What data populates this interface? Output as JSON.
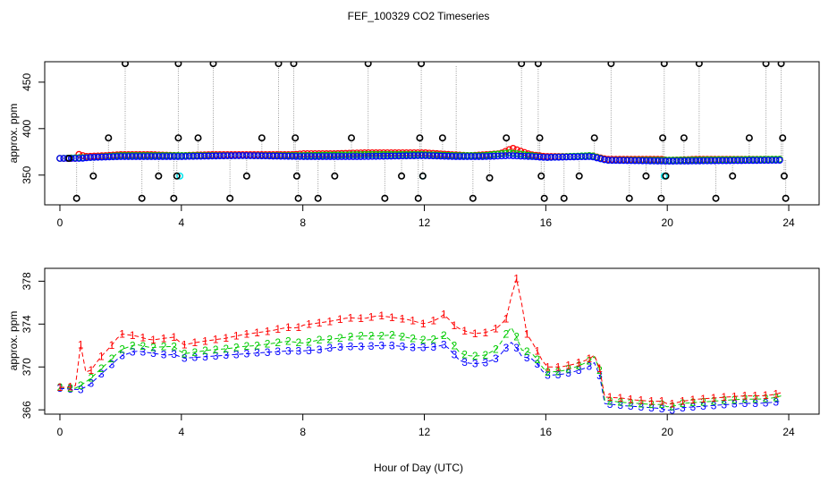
{
  "chart_data": {
    "type": "line",
    "title": "FEF_100329  CO2 Timeseries",
    "xlabel": "Hour of Day (UTC)",
    "colors": {
      "series1": "#ff0000",
      "series2": "#00cc00",
      "series3": "#0000ff",
      "cyan": "#00e5ee",
      "qc": "#000000",
      "connector": "#999999"
    },
    "panels": [
      {
        "ylabel": "approx. ppm",
        "xlim": [
          -0.5,
          25
        ],
        "ylim": [
          318,
          472
        ],
        "xticks": [
          0,
          4,
          8,
          12,
          16,
          20,
          24
        ],
        "xticklabels": [
          "0",
          "4",
          "8",
          "12",
          "16",
          "20",
          "24"
        ],
        "yticks": [
          350,
          400,
          450
        ],
        "yticklabels": [
          "350",
          "400",
          "450"
        ],
        "series": [
          {
            "name": "1",
            "x": [
              0,
              0.5,
              0.65,
              0.8,
              1.5,
              2,
              3,
              4,
              5,
              6,
              7,
              7.7,
              8,
              9,
              10,
              11,
              12,
              12.9,
              13.5,
              14.5,
              14.9,
              15.5,
              16,
              17,
              17.5,
              18,
              19,
              19.8,
              20,
              21,
              22,
              23,
              23.7
            ],
            "y": [
              368,
              368,
              373,
              370,
              371,
              372,
              372,
              371,
              372,
              372,
              372,
              372,
              373,
              373,
              374,
              374,
              374,
              372,
              371,
              373,
              379,
              372,
              370,
              370,
              371,
              367,
              367,
              367,
              366,
              367,
              367,
              367,
              367
            ]
          },
          {
            "name": "2",
            "x": [
              0,
              1,
              2,
              4,
              6,
              8,
              10,
              12,
              13,
              14,
              14.8,
              15.5,
              16,
              17.5,
              18,
              20,
              23.7
            ],
            "y": [
              368,
              369,
              371,
              371,
              371,
              371,
              372,
              372,
              371,
              371,
              374,
              371,
              369,
              371,
              366,
              366,
              367
            ]
          },
          {
            "name": "3",
            "x": [
              0,
              0.7,
              1,
              2,
              4,
              6,
              8,
              10,
              12,
              13,
              14,
              14.8,
              15.5,
              16,
              17.5,
              18,
              20,
              23.7
            ],
            "y": [
              368,
              368,
              369,
              370,
              370,
              371,
              370,
              370,
              371,
              370,
              370,
              371,
              370,
              369,
              370,
              366,
              365,
              366
            ]
          },
          {
            "name": "cyan",
            "x": [
              3.95,
              11.95,
              19.9
            ],
            "y": [
              349,
              349,
              349
            ]
          }
        ],
        "qc_points": {
          "x": [
            0.3,
            0.55,
            1.1,
            1.6,
            2.15,
            2.7,
            3.25,
            3.75,
            3.85,
            3.9,
            3.9,
            4.55,
            5.05,
            5.6,
            6.15,
            6.65,
            7.2,
            7.7,
            7.75,
            7.8,
            7.85,
            8.5,
            9.05,
            9.6,
            10.15,
            10.7,
            11.25,
            11.8,
            11.85,
            11.9,
            11.95,
            12.6,
            13.6,
            14.15,
            14.7,
            15.2,
            15.75,
            15.8,
            15.85,
            15.95,
            16.6,
            17.1,
            17.6,
            18.15,
            18.75,
            19.3,
            19.8,
            19.85,
            19.9,
            19.95,
            20.55,
            21.05,
            21.6,
            22.15,
            22.7,
            23.25,
            23.75,
            23.8,
            23.85,
            23.9
          ],
          "y": [
            368,
            325,
            349,
            390,
            470,
            325,
            349,
            325,
            349,
            390,
            470,
            390,
            470,
            325,
            349,
            390,
            470,
            470,
            390,
            349,
            325,
            325,
            349,
            390,
            470,
            325,
            349,
            325,
            390,
            470,
            349,
            390,
            325,
            347,
            390,
            470,
            470,
            390,
            349,
            325,
            325,
            349,
            390,
            470,
            325,
            349,
            325,
            390,
            470,
            349,
            390,
            470,
            325,
            349,
            390,
            470,
            470,
            390,
            349,
            325
          ]
        },
        "spikes": {
          "x": [
            13.05
          ],
          "y": [
            468
          ]
        }
      },
      {
        "ylabel": "approx. ppm",
        "xlim": [
          -0.5,
          25
        ],
        "ylim": [
          365.6,
          379.2
        ],
        "xticks": [
          0,
          4,
          8,
          12,
          16,
          20,
          24
        ],
        "xticklabels": [
          "0",
          "4",
          "8",
          "12",
          "16",
          "20",
          "24"
        ],
        "yticks": [
          366,
          370,
          374,
          378
        ],
        "yticklabels": [
          "366",
          "370",
          "374",
          "378"
        ],
        "series": [
          {
            "name": "1",
            "label": "1",
            "x": [
              0,
              0.3,
              0.55,
              0.65,
              0.8,
              1.0,
              1.3,
              1.7,
              2.0,
              2.5,
              3.0,
              3.5,
              3.85,
              4.0,
              4.5,
              5.0,
              5.5,
              6.0,
              6.5,
              7.0,
              7.5,
              7.8,
              8.0,
              8.5,
              9.0,
              9.5,
              10.0,
              10.5,
              11.0,
              11.5,
              12.0,
              12.4,
              12.7,
              12.9,
              13.2,
              13.6,
              14.0,
              14.4,
              14.7,
              14.9,
              15.1,
              15.3,
              15.6,
              16.0,
              16.5,
              17.0,
              17.4,
              17.7,
              17.9,
              18.5,
              19.0,
              19.5,
              19.85,
              20.05,
              20.5,
              21.0,
              21.5,
              22.0,
              22.5,
              23.0,
              23.5,
              23.75
            ],
            "y": [
              368.1,
              368.1,
              368.3,
              372.8,
              369.5,
              369.6,
              370.8,
              372.0,
              373.1,
              372.9,
              372.5,
              372.7,
              372.8,
              372.0,
              372.3,
              372.5,
              372.7,
              373.0,
              373.2,
              373.4,
              373.7,
              373.6,
              373.9,
              374.1,
              374.3,
              374.6,
              374.5,
              374.8,
              374.6,
              374.4,
              374.0,
              374.4,
              375.0,
              374.0,
              373.5,
              373.1,
              373.2,
              373.6,
              374.5,
              377.0,
              378.8,
              373.4,
              372.1,
              370.0,
              370.0,
              370.3,
              370.7,
              371.3,
              367.2,
              367.1,
              366.9,
              366.8,
              366.8,
              366.5,
              366.8,
              367.0,
              367.1,
              367.2,
              367.3,
              367.3,
              367.4,
              367.6
            ]
          },
          {
            "name": "2",
            "label": "2",
            "x": [
              0,
              0.5,
              0.7,
              1.0,
              1.5,
              2.0,
              2.5,
              3.0,
              3.5,
              3.85,
              4.0,
              4.5,
              5.0,
              5.5,
              6.0,
              6.5,
              7.0,
              7.5,
              7.8,
              8.0,
              8.5,
              9.0,
              9.5,
              10.0,
              10.5,
              11.0,
              11.5,
              12.0,
              12.4,
              12.7,
              12.9,
              13.2,
              13.6,
              14.0,
              14.4,
              14.7,
              14.9,
              15.2,
              15.6,
              16.0,
              16.5,
              17.0,
              17.4,
              17.7,
              17.9,
              18.5,
              19.0,
              19.5,
              19.85,
              20.05,
              20.5,
              21.0,
              21.5,
              22.0,
              22.5,
              23.0,
              23.5,
              23.75
            ],
            "y": [
              368.1,
              368.0,
              368.3,
              368.9,
              370.2,
              371.6,
              372.1,
              371.8,
              371.9,
              371.9,
              371.2,
              371.4,
              371.6,
              371.7,
              371.9,
              372.0,
              372.2,
              372.4,
              372.3,
              372.2,
              372.5,
              372.6,
              372.8,
              372.9,
              372.9,
              373.0,
              372.7,
              372.5,
              372.6,
              373.0,
              372.3,
              371.2,
              371.0,
              371.1,
              371.7,
              373.1,
              373.8,
              371.6,
              371.2,
              369.5,
              369.6,
              370.0,
              370.5,
              371.2,
              366.9,
              366.7,
              366.6,
              366.5,
              366.5,
              366.2,
              366.6,
              366.7,
              366.8,
              366.9,
              367.0,
              367.0,
              367.1,
              367.3
            ]
          },
          {
            "name": "3",
            "label": "3",
            "x": [
              0,
              0.5,
              0.7,
              1.0,
              1.5,
              2.0,
              2.5,
              3.0,
              3.5,
              3.85,
              4.0,
              4.5,
              5.0,
              5.5,
              6.0,
              6.5,
              7.0,
              7.5,
              7.8,
              8.0,
              8.5,
              9.0,
              9.5,
              10.0,
              10.5,
              11.0,
              11.5,
              12.0,
              12.4,
              12.7,
              12.9,
              13.2,
              13.6,
              14.0,
              14.4,
              14.7,
              14.9,
              15.2,
              15.6,
              16.0,
              16.5,
              17.0,
              17.4,
              17.7,
              17.9,
              18.5,
              19.0,
              19.5,
              19.85,
              20.05,
              20.5,
              21.0,
              21.5,
              22.0,
              22.5,
              23.0,
              23.5,
              23.75
            ],
            "y": [
              368.0,
              367.9,
              367.9,
              368.4,
              369.7,
              371.0,
              371.5,
              371.3,
              371.1,
              371.2,
              370.8,
              370.9,
              371.0,
              371.1,
              371.2,
              371.3,
              371.4,
              371.5,
              371.5,
              371.5,
              371.6,
              371.8,
              371.9,
              371.9,
              372.0,
              372.0,
              371.8,
              371.8,
              371.9,
              372.1,
              371.4,
              370.5,
              370.3,
              370.4,
              370.8,
              371.8,
              372.4,
              371.0,
              370.7,
              369.2,
              369.3,
              369.6,
              370.0,
              370.6,
              366.6,
              366.4,
              366.3,
              366.2,
              366.1,
              365.9,
              366.2,
              366.3,
              366.4,
              366.5,
              366.6,
              366.6,
              366.7,
              366.8
            ]
          }
        ]
      }
    ]
  }
}
